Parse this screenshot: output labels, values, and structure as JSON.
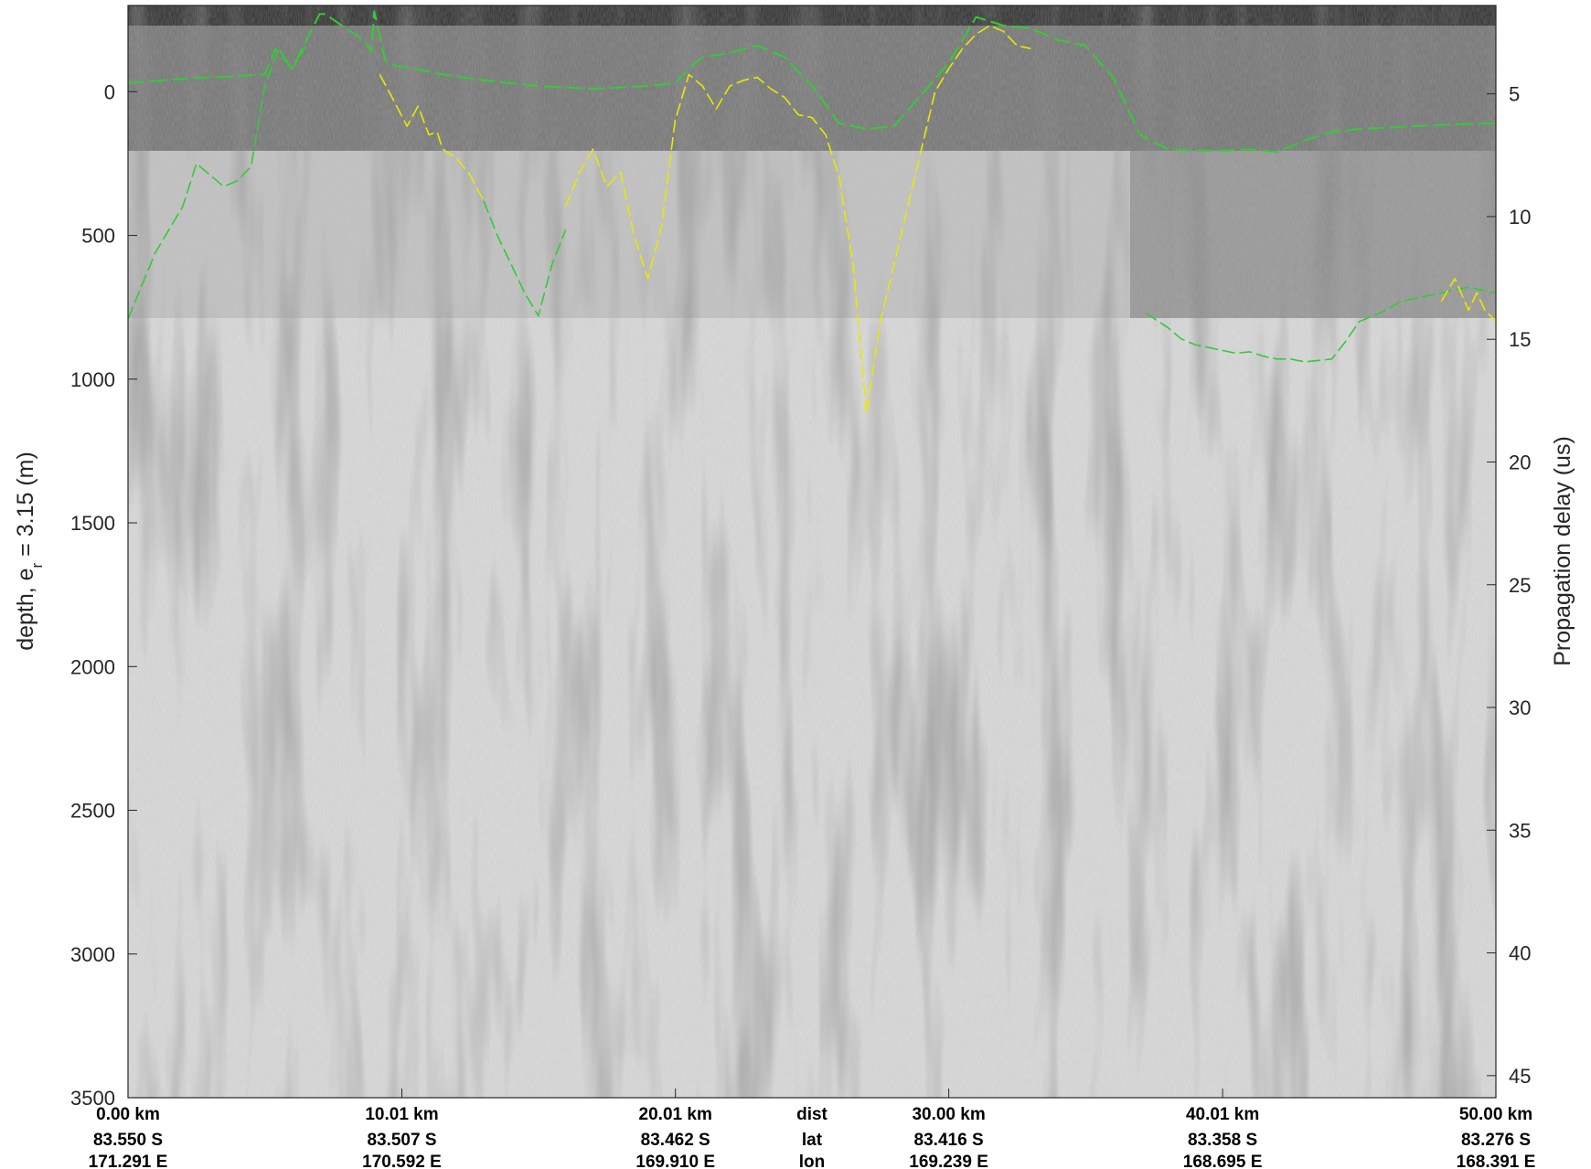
{
  "chart_data": {
    "type": "radargram",
    "left_axis": {
      "label_main": "depth, e",
      "label_sub": "r",
      "label_tail": " = 3.15 (m)",
      "ticks": [
        0,
        500,
        1000,
        1500,
        2000,
        2500,
        3000,
        3500
      ],
      "range": [
        -300,
        3500
      ],
      "reversed": true
    },
    "right_axis": {
      "label": "Propagation delay (us)",
      "ticks": [
        5,
        10,
        15,
        20,
        25,
        30,
        35,
        40,
        45
      ],
      "range": [
        1.4,
        45.9
      ],
      "reversed": true
    },
    "x_range_km": [
      0,
      50
    ],
    "geo_rows": [
      {
        "label": "dist",
        "values": [
          "0.00 km",
          "10.01 km",
          "20.01 km",
          "30.00 km",
          "40.01 km",
          "50.00 km"
        ]
      },
      {
        "label": "lat",
        "values": [
          "83.550 S",
          "83.507 S",
          "83.462 S",
          "83.416 S",
          "83.358 S",
          "83.276 S"
        ]
      },
      {
        "label": "lon",
        "values": [
          "171.291 E",
          "170.592 E",
          "169.910 E",
          "169.239 E",
          "168.695 E",
          "168.391 E"
        ]
      }
    ],
    "geo_tick_km": [
      0,
      10.01,
      20.01,
      30.0,
      40.01,
      50.0
    ],
    "geo_label_center_km": 25,
    "colors": {
      "surface": "#33cc33",
      "bed_green": "#33cc33",
      "bed_yellow": "#e8e800",
      "background": "#ffffff"
    },
    "series": [
      {
        "color": "green",
        "role": "surface",
        "x": [
          0,
          2,
          4,
          5,
          5.4,
          6,
          7,
          7.2,
          8.6,
          8.9,
          9,
          9.4,
          9.8,
          10.5,
          11.5,
          13,
          15,
          17,
          19,
          20,
          20.5,
          21,
          22,
          23,
          24,
          25,
          26,
          27,
          28,
          30,
          31,
          32,
          33,
          34,
          35,
          36,
          37,
          38,
          39,
          40,
          41,
          42,
          43,
          44,
          45,
          46,
          47,
          48,
          49,
          50
        ],
        "y": [
          -30,
          -45,
          -55,
          -60,
          -150,
          -80,
          -270,
          -270,
          -180,
          -140,
          -280,
          -110,
          -90,
          -80,
          -60,
          -40,
          -20,
          -10,
          -20,
          -30,
          -80,
          -120,
          -135,
          -160,
          -120,
          -20,
          110,
          130,
          120,
          -100,
          -260,
          -230,
          -220,
          -180,
          -160,
          -50,
          150,
          200,
          205,
          205,
          200,
          210,
          170,
          140,
          130,
          125,
          120,
          115,
          112,
          110
        ]
      },
      {
        "color": "green",
        "role": "bed-left",
        "x": [
          0,
          1,
          2,
          2.5,
          3,
          3.5,
          4,
          4.5,
          5,
          5.5,
          6,
          6.5
        ],
        "y": [
          790,
          560,
          400,
          250,
          290,
          330,
          310,
          260,
          -20,
          -150,
          -80,
          -160
        ]
      },
      {
        "color": "yellow",
        "role": "bed-center-left",
        "x": [
          9.2,
          9.6,
          10.2,
          10.6,
          11,
          11.3,
          11.5,
          12,
          12.5,
          13
        ],
        "y": [
          -60,
          10,
          120,
          50,
          150,
          140,
          200,
          230,
          290,
          380
        ]
      },
      {
        "color": "green",
        "role": "bed-trough-1",
        "x": [
          13,
          13.5,
          14,
          14.5,
          15,
          15.5,
          16
        ],
        "y": [
          380,
          500,
          600,
          700,
          780,
          600,
          480
        ]
      },
      {
        "color": "yellow",
        "role": "bed-center",
        "x": [
          16,
          16.5,
          17,
          17.5,
          18,
          18.5,
          19,
          19.5,
          20,
          20.5,
          21,
          21.5,
          22,
          22.5,
          23,
          23.5,
          24,
          24.5,
          25,
          25.5,
          26,
          26.5,
          27,
          27.5,
          28,
          28.5,
          29,
          29.5,
          30,
          30.5,
          31,
          31.5,
          32,
          32.5,
          33
        ],
        "y": [
          400,
          280,
          200,
          330,
          280,
          500,
          650,
          470,
          100,
          -60,
          -20,
          60,
          -20,
          -40,
          -50,
          -10,
          20,
          80,
          90,
          150,
          300,
          600,
          1120,
          800,
          600,
          400,
          200,
          0,
          -80,
          -150,
          -200,
          -230,
          -210,
          -160,
          -150
        ]
      },
      {
        "color": "green",
        "role": "bed-right",
        "x": [
          37.2,
          38,
          38.5,
          39,
          39.5,
          40,
          40.5,
          41,
          41.5,
          42,
          42.5,
          43,
          43.5,
          44,
          44.5,
          45,
          45.5,
          46,
          46.5,
          47,
          47.5,
          48,
          48.5,
          49,
          49.5,
          50
        ],
        "y": [
          770,
          820,
          860,
          880,
          890,
          900,
          910,
          905,
          920,
          930,
          930,
          940,
          935,
          930,
          870,
          800,
          780,
          760,
          730,
          720,
          710,
          700,
          690,
          680,
          690,
          700
        ]
      },
      {
        "color": "yellow",
        "role": "bed-right-tail",
        "x": [
          48,
          48.5,
          49,
          49.3,
          49.6,
          50
        ],
        "y": [
          730,
          650,
          760,
          700,
          760,
          800
        ]
      }
    ]
  }
}
